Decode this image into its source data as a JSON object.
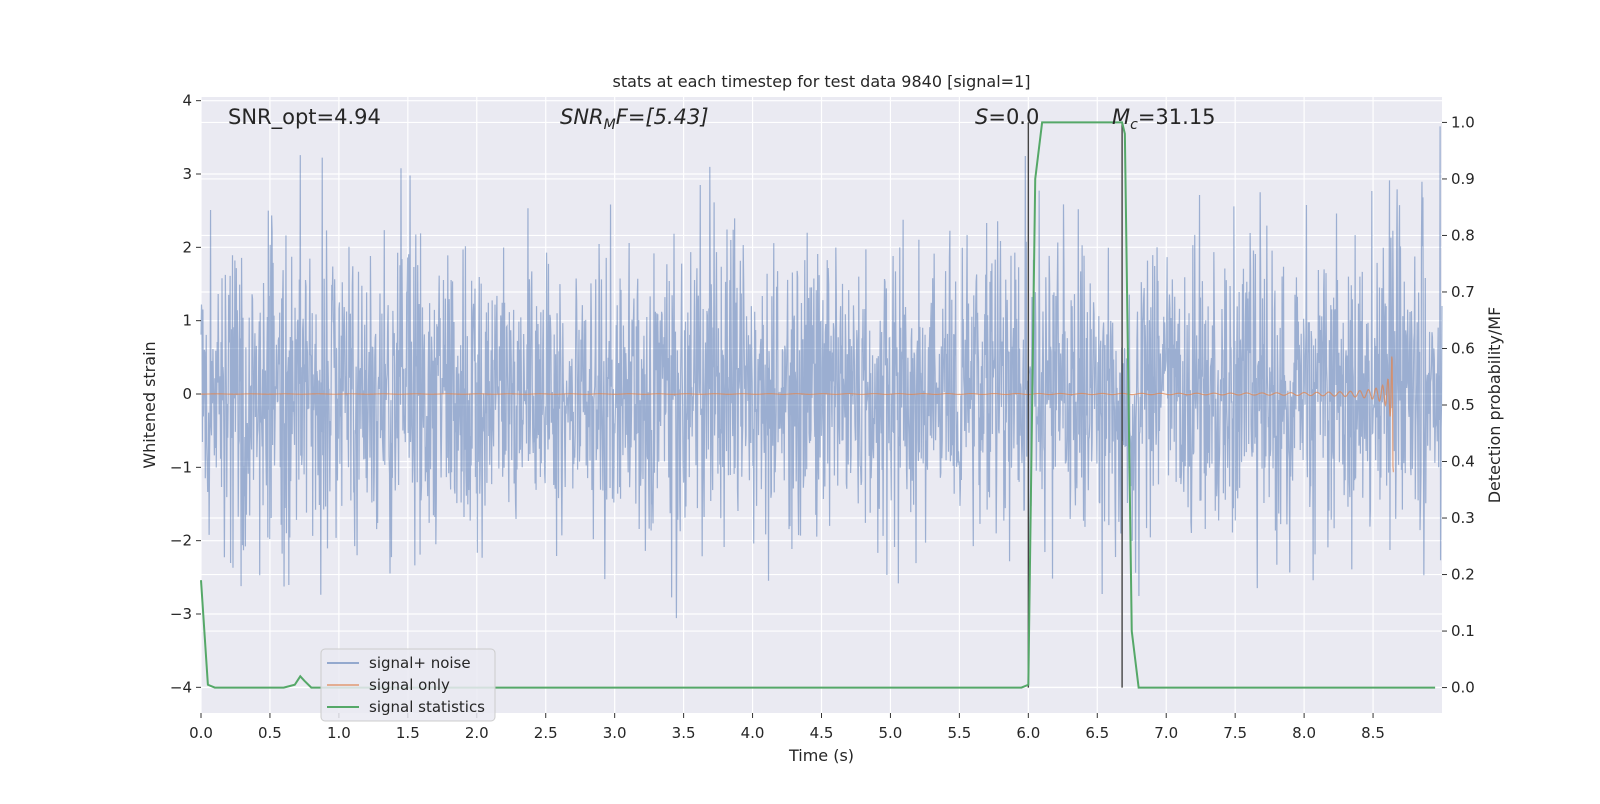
{
  "chart_data": {
    "type": "line",
    "title": "stats at each timestep for test data 9840 [signal=1]",
    "xlabel": "Time (s)",
    "ylabel_left": "Whitened strain",
    "ylabel_right": "Detection probability/MF",
    "xlim": [
      0.0,
      9.0
    ],
    "ylim_left": [
      -4.35,
      4.05
    ],
    "ylim_right": [
      -0.045,
      1.045
    ],
    "x_ticks": [
      "0.0",
      "0.5",
      "1.0",
      "1.5",
      "2.0",
      "2.5",
      "3.0",
      "3.5",
      "4.0",
      "4.5",
      "5.0",
      "5.5",
      "6.0",
      "6.5",
      "7.0",
      "7.5",
      "8.0",
      "8.5"
    ],
    "y_left_ticks": [
      "4",
      "3",
      "2",
      "1",
      "0",
      "−1",
      "−2",
      "−3",
      "−4"
    ],
    "y_right_ticks": [
      "1.0",
      "0.9",
      "0.8",
      "0.7",
      "0.6",
      "0.5",
      "0.4",
      "0.3",
      "0.2",
      "0.1",
      "0.0"
    ],
    "grid": true,
    "background": "#eaeaf2",
    "annotations": {
      "snr_opt": "SNR_opt=4.94",
      "snr_mf_sym": "SNR",
      "snr_mf_sub": "M",
      "snr_mf_rest": "F=[5.43]",
      "s_sym": "S",
      "s_rest": "=0.0",
      "mc_sym": "M",
      "mc_sub": "c",
      "mc_rest": "=31.15"
    },
    "vertical_markers": [
      6.0,
      6.68
    ],
    "series": [
      {
        "name": "signal+ noise",
        "color": "#4c72b0",
        "kind": "noise",
        "x_range": [
          0.0,
          9.0
        ],
        "amplitude_std": 1.0,
        "peak_range": [
          -3.6,
          3.65
        ]
      },
      {
        "name": "signal only",
        "color": "#dd8452",
        "kind": "chirp",
        "x_range": [
          0.0,
          8.65
        ],
        "peak_amplitude": 1.1,
        "merger_time": 8.65
      },
      {
        "name": "signal statistics",
        "color": "#55a868",
        "kind": "step",
        "x": [
          0.0,
          0.05,
          0.1,
          0.15,
          0.2,
          0.3,
          0.4,
          0.5,
          0.6,
          0.68,
          0.72,
          0.75,
          0.8,
          0.9,
          1.0,
          2.0,
          3.0,
          4.0,
          5.0,
          5.95,
          6.0,
          6.05,
          6.1,
          6.2,
          6.5,
          6.6,
          6.68,
          6.7,
          6.75,
          6.8,
          7.0,
          8.0,
          8.95
        ],
        "y": [
          0.19,
          0.005,
          0.0,
          0.0,
          0.0,
          0.0,
          0.0,
          0.0,
          0.0,
          0.005,
          0.02,
          0.012,
          0.0,
          0.0,
          0.0,
          0.0,
          0.0,
          0.0,
          0.0,
          0.0,
          0.005,
          0.9,
          1.0,
          1.0,
          1.0,
          1.0,
          1.0,
          0.98,
          0.1,
          0.0,
          0.0,
          0.0,
          0.0
        ]
      }
    ],
    "legend": {
      "placement": "lower-left",
      "entries": [
        "signal+ noise",
        "signal only",
        "signal statistics"
      ]
    }
  }
}
